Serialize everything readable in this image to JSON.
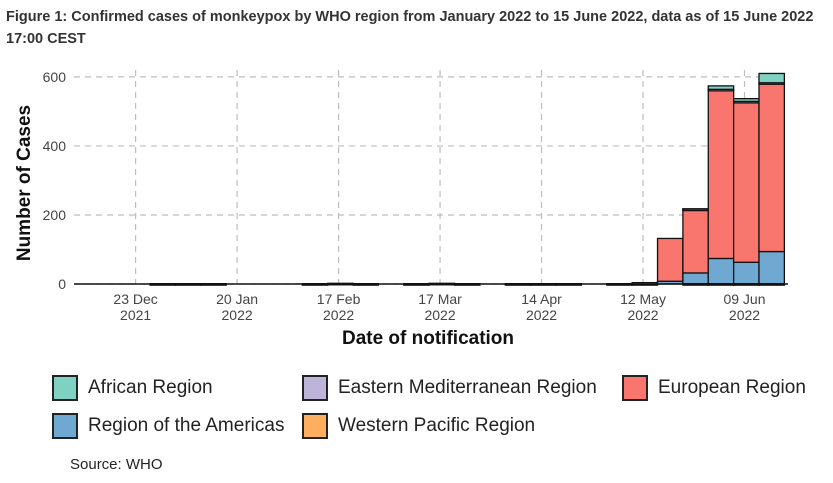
{
  "figure": {
    "title": "Figure 1: Confirmed cases of monkeypox by WHO region from January 2022 to 15 June 2022, data as of 15 June 2022 17:00 CEST",
    "source": "Source: WHO"
  },
  "chart_data": {
    "type": "bar",
    "stacked": true,
    "title": "",
    "xlabel": "Date of notification",
    "ylabel": "Number of Cases",
    "ylim": [
      0,
      620
    ],
    "yticks": [
      0,
      200,
      400,
      600
    ],
    "xticks": [
      {
        "date": "2021-12-23",
        "label": "23 Dec\n2021"
      },
      {
        "date": "2022-01-20",
        "label": "20 Jan\n2022"
      },
      {
        "date": "2022-02-17",
        "label": "17 Feb\n2022"
      },
      {
        "date": "2022-03-17",
        "label": "17 Mar\n2022"
      },
      {
        "date": "2022-04-14",
        "label": "14 Apr\n2022"
      },
      {
        "date": "2022-05-12",
        "label": "12 May\n2022"
      },
      {
        "date": "2022-06-09",
        "label": "09 Jun\n2022"
      }
    ],
    "grid": true,
    "legend_position": "bottom",
    "series": [
      {
        "name": "African Region",
        "color": "#7fd1c1"
      },
      {
        "name": "Eastern Mediterranean Region",
        "color": "#bdb4d9"
      },
      {
        "name": "European Region",
        "color": "#f8766d"
      },
      {
        "name": "Region of the Americas",
        "color": "#6fa8d0"
      },
      {
        "name": "Western Pacific Region",
        "color": "#fdae5f"
      }
    ],
    "stack_order_bottom_to_top": [
      "Western Pacific Region",
      "Region of the Americas",
      "European Region",
      "Eastern Mediterranean Region",
      "African Region"
    ],
    "weeks": [
      {
        "start": "2021-12-27",
        "African Region": 1,
        "Eastern Mediterranean Region": 0,
        "European Region": 0,
        "Region of the Americas": 0,
        "Western Pacific Region": 0
      },
      {
        "start": "2022-01-03",
        "African Region": 1,
        "Eastern Mediterranean Region": 0,
        "European Region": 0,
        "Region of the Americas": 0,
        "Western Pacific Region": 0
      },
      {
        "start": "2022-01-10",
        "African Region": 1,
        "Eastern Mediterranean Region": 0,
        "European Region": 0,
        "Region of the Americas": 0,
        "Western Pacific Region": 0
      },
      {
        "start": "2022-02-07",
        "African Region": 1,
        "Eastern Mediterranean Region": 0,
        "European Region": 0,
        "Region of the Americas": 0,
        "Western Pacific Region": 0
      },
      {
        "start": "2022-02-14",
        "African Region": 2,
        "Eastern Mediterranean Region": 0,
        "European Region": 0,
        "Region of the Americas": 0,
        "Western Pacific Region": 0
      },
      {
        "start": "2022-02-21",
        "African Region": 1,
        "Eastern Mediterranean Region": 0,
        "European Region": 0,
        "Region of the Americas": 0,
        "Western Pacific Region": 0
      },
      {
        "start": "2022-03-07",
        "African Region": 1,
        "Eastern Mediterranean Region": 0,
        "European Region": 0,
        "Region of the Americas": 0,
        "Western Pacific Region": 0
      },
      {
        "start": "2022-03-14",
        "African Region": 2,
        "Eastern Mediterranean Region": 0,
        "European Region": 0,
        "Region of the Americas": 0,
        "Western Pacific Region": 0
      },
      {
        "start": "2022-03-21",
        "African Region": 1,
        "Eastern Mediterranean Region": 0,
        "European Region": 0,
        "Region of the Americas": 0,
        "Western Pacific Region": 0
      },
      {
        "start": "2022-04-04",
        "African Region": 1,
        "Eastern Mediterranean Region": 0,
        "European Region": 0,
        "Region of the Americas": 0,
        "Western Pacific Region": 0
      },
      {
        "start": "2022-04-11",
        "African Region": 1,
        "Eastern Mediterranean Region": 0,
        "European Region": 0,
        "Region of the Americas": 0,
        "Western Pacific Region": 0
      },
      {
        "start": "2022-04-18",
        "African Region": 1,
        "Eastern Mediterranean Region": 0,
        "European Region": 0,
        "Region of the Americas": 0,
        "Western Pacific Region": 0
      },
      {
        "start": "2022-05-02",
        "African Region": 1,
        "Eastern Mediterranean Region": 0,
        "European Region": 0,
        "Region of the Americas": 0,
        "Western Pacific Region": 0
      },
      {
        "start": "2022-05-09",
        "African Region": 1,
        "Eastern Mediterranean Region": 0,
        "European Region": 2,
        "Region of the Americas": 1,
        "Western Pacific Region": 0
      },
      {
        "start": "2022-05-16",
        "African Region": 0,
        "Eastern Mediterranean Region": 0,
        "European Region": 124,
        "Region of the Americas": 8,
        "Western Pacific Region": 0
      },
      {
        "start": "2022-05-23",
        "African Region": 1,
        "Eastern Mediterranean Region": 2,
        "European Region": 183,
        "Region of the Americas": 31,
        "Western Pacific Region": 1
      },
      {
        "start": "2022-05-30",
        "African Region": 10,
        "Eastern Mediterranean Region": 4,
        "European Region": 486,
        "Region of the Americas": 73,
        "Western Pacific Region": 1
      },
      {
        "start": "2022-06-06",
        "African Region": 8,
        "Eastern Mediterranean Region": 3,
        "European Region": 463,
        "Region of the Americas": 62,
        "Western Pacific Region": 1
      },
      {
        "start": "2022-06-13",
        "African Region": 27,
        "Eastern Mediterranean Region": 2,
        "European Region": 487,
        "Region of the Americas": 93,
        "Western Pacific Region": 1
      }
    ]
  }
}
